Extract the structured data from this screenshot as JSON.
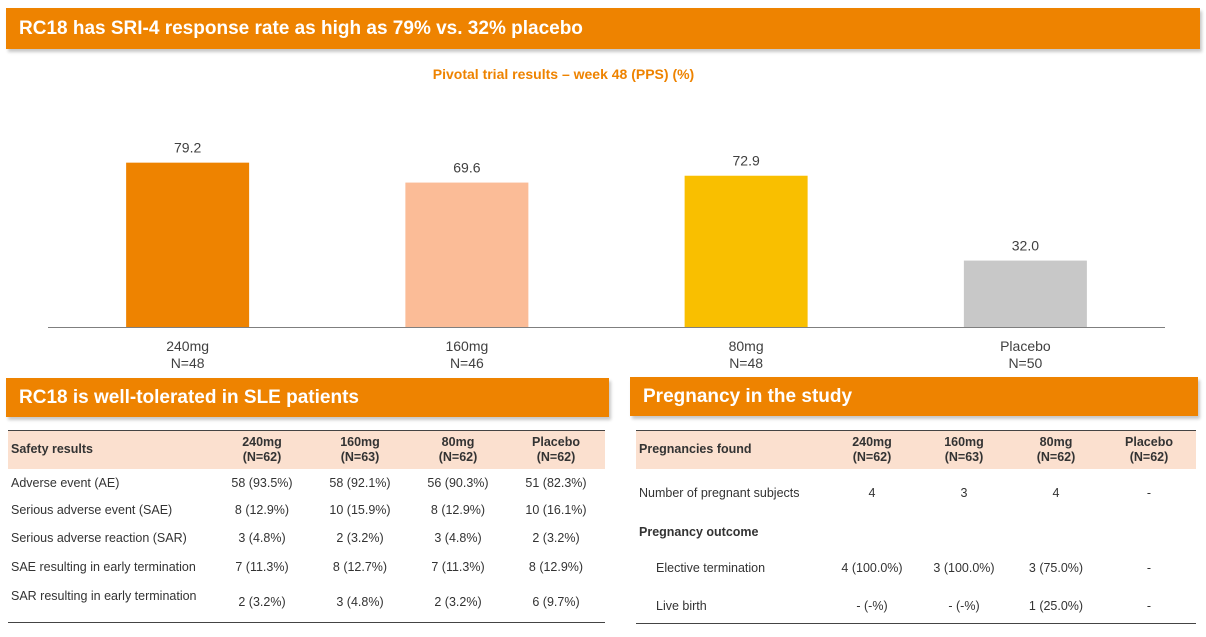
{
  "banners": {
    "top": "RC18 has SRI-4 response rate as high as 79% vs. 32% placebo",
    "safety": "RC18 is well-tolerated in SLE patients",
    "pregnancy": "Pregnancy in the study"
  },
  "chart_data": {
    "type": "bar",
    "title": "Pivotal trial results – week 48 (PPS) (%)",
    "categories": [
      {
        "dose": "240mg",
        "n": "N=48"
      },
      {
        "dose": "160mg",
        "n": "N=46"
      },
      {
        "dose": "80mg",
        "n": "N=48"
      },
      {
        "dose": "Placebo",
        "n": "N=50"
      }
    ],
    "values": [
      79.2,
      69.6,
      72.9,
      32.0
    ],
    "value_labels": [
      "79.2",
      "69.6",
      "72.9",
      "32.0"
    ],
    "colors": [
      "#ee8300",
      "#fbbc97",
      "#f9bf00",
      "#c8c8c8"
    ],
    "ylim": [
      0,
      100
    ],
    "grid": false,
    "legend": "none"
  },
  "safety": {
    "header": {
      "label": "Safety results",
      "columns": [
        {
          "dose": "240mg",
          "n": "(N=62)"
        },
        {
          "dose": "160mg",
          "n": "(N=63)"
        },
        {
          "dose": "80mg",
          "n": "(N=62)"
        },
        {
          "dose": "Placebo",
          "n": "(N=62)"
        }
      ]
    },
    "rows": [
      {
        "label": "Adverse event (AE)",
        "values": [
          "58 (93.5%)",
          "58 (92.1%)",
          "56 (90.3%)",
          "51 (82.3%)"
        ]
      },
      {
        "label": "Serious adverse event (SAE)",
        "values": [
          "8 (12.9%)",
          "10 (15.9%)",
          "8 (12.9%)",
          "10 (16.1%)"
        ]
      },
      {
        "label": "Serious adverse reaction (SAR)",
        "values": [
          "3 (4.8%)",
          "2 (3.2%)",
          "3 (4.8%)",
          "2 (3.2%)"
        ]
      },
      {
        "label": "SAE resulting in early termination",
        "values": [
          "7 (11.3%)",
          "8 (12.7%)",
          "7 (11.3%)",
          "8 (12.9%)"
        ]
      },
      {
        "label": "SAR resulting in early termination",
        "values": [
          "2 (3.2%)",
          "3 (4.8%)",
          "2 (3.2%)",
          "6 (9.7%)"
        ]
      }
    ]
  },
  "pregnancy": {
    "header": {
      "label": "Pregnancies found",
      "columns": [
        {
          "dose": "240mg",
          "n": "(N=62)"
        },
        {
          "dose": "160mg",
          "n": "(N=63)"
        },
        {
          "dose": "80mg",
          "n": "(N=62)"
        },
        {
          "dose": "Placebo",
          "n": "(N=62)"
        }
      ]
    },
    "subjects": {
      "label": "Number of pregnant subjects",
      "values": [
        "4",
        "3",
        "4",
        "-"
      ]
    },
    "outcome_label": "Pregnancy outcome",
    "outcomes": [
      {
        "label": "Elective termination",
        "values": [
          "4 (100.0%)",
          "3 (100.0%)",
          "3 (75.0%)",
          "-"
        ]
      },
      {
        "label": "Live birth",
        "values": [
          "- (-%)",
          "- (-%)",
          "1 (25.0%)",
          "-"
        ]
      }
    ]
  }
}
